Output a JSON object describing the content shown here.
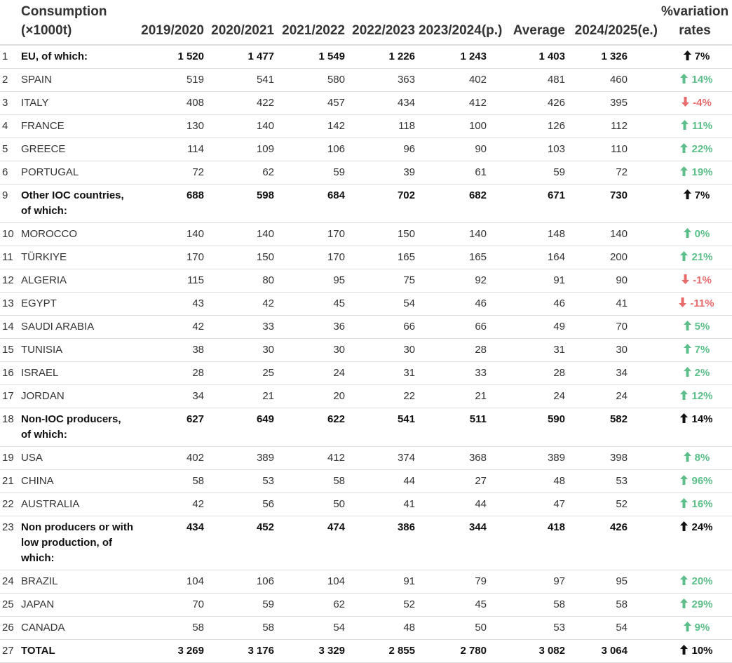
{
  "colors": {
    "up": "#5cbf8a",
    "down": "#e86b6b"
  },
  "headers": [
    "Consumption (×1000t)",
    "2019/2020",
    "2020/2021",
    "2021/2022",
    "2022/2023",
    "2023/2024(p.)",
    "Average",
    "2024/2025(e.)",
    "%variation rates"
  ],
  "rows": [
    {
      "n": "1",
      "name": "EU, of which:",
      "bold": true,
      "v": [
        "1 520",
        "1 477",
        "1 549",
        "1 226",
        "1 243",
        "1 403",
        "1 326"
      ],
      "var": "7%",
      "dir": "up"
    },
    {
      "n": "2",
      "name": "SPAIN",
      "v": [
        "519",
        "541",
        "580",
        "363",
        "402",
        "481",
        "460"
      ],
      "var": "14%",
      "dir": "up"
    },
    {
      "n": "3",
      "name": "ITALY",
      "v": [
        "408",
        "422",
        "457",
        "434",
        "412",
        "426",
        "395"
      ],
      "var": "-4%",
      "dir": "down"
    },
    {
      "n": "4",
      "name": "FRANCE",
      "v": [
        "130",
        "140",
        "142",
        "118",
        "100",
        "126",
        "112"
      ],
      "var": "11%",
      "dir": "up"
    },
    {
      "n": "5",
      "name": "GREECE",
      "v": [
        "114",
        "109",
        "106",
        "96",
        "90",
        "103",
        "110"
      ],
      "var": "22%",
      "dir": "up"
    },
    {
      "n": "6",
      "name": "PORTUGAL",
      "v": [
        "72",
        "62",
        "59",
        "39",
        "61",
        "59",
        "72"
      ],
      "var": "19%",
      "dir": "up"
    },
    {
      "n": "9",
      "name": "Other IOC countries, of which:",
      "bold": true,
      "v": [
        "688",
        "598",
        "684",
        "702",
        "682",
        "671",
        "730"
      ],
      "var": "7%",
      "dir": "up"
    },
    {
      "n": "10",
      "name": "MOROCCO",
      "v": [
        "140",
        "140",
        "170",
        "150",
        "140",
        "148",
        "140"
      ],
      "var": "0%",
      "dir": "up"
    },
    {
      "n": "11",
      "name": "TÜRKIYE",
      "v": [
        "170",
        "150",
        "170",
        "165",
        "165",
        "164",
        "200"
      ],
      "var": "21%",
      "dir": "up"
    },
    {
      "n": "12",
      "name": "ALGERIA",
      "v": [
        "115",
        "80",
        "95",
        "75",
        "92",
        "91",
        "90"
      ],
      "var": "-1%",
      "dir": "down"
    },
    {
      "n": "13",
      "name": "EGYPT",
      "v": [
        "43",
        "42",
        "45",
        "54",
        "46",
        "46",
        "41"
      ],
      "var": "-11%",
      "dir": "down"
    },
    {
      "n": "14",
      "name": "SAUDI ARABIA",
      "v": [
        "42",
        "33",
        "36",
        "66",
        "66",
        "49",
        "70"
      ],
      "var": "5%",
      "dir": "up"
    },
    {
      "n": "15",
      "name": "TUNISIA",
      "v": [
        "38",
        "30",
        "30",
        "30",
        "28",
        "31",
        "30"
      ],
      "var": "7%",
      "dir": "up"
    },
    {
      "n": "16",
      "name": "ISRAEL",
      "v": [
        "28",
        "25",
        "24",
        "31",
        "33",
        "28",
        "34"
      ],
      "var": "2%",
      "dir": "up"
    },
    {
      "n": "17",
      "name": "JORDAN",
      "v": [
        "34",
        "21",
        "20",
        "22",
        "21",
        "24",
        "24"
      ],
      "var": "12%",
      "dir": "up"
    },
    {
      "n": "18",
      "name": "Non-IOC producers, of which:",
      "bold": true,
      "v": [
        "627",
        "649",
        "622",
        "541",
        "511",
        "590",
        "582"
      ],
      "var": "14%",
      "dir": "up"
    },
    {
      "n": "19",
      "name": "USA",
      "v": [
        "402",
        "389",
        "412",
        "374",
        "368",
        "389",
        "398"
      ],
      "var": "8%",
      "dir": "up"
    },
    {
      "n": "21",
      "name": "CHINA",
      "v": [
        "58",
        "53",
        "58",
        "44",
        "27",
        "48",
        "53"
      ],
      "var": "96%",
      "dir": "up"
    },
    {
      "n": "22",
      "name": "AUSTRALIA",
      "v": [
        "42",
        "56",
        "50",
        "41",
        "44",
        "47",
        "52"
      ],
      "var": "16%",
      "dir": "up"
    },
    {
      "n": "23",
      "name": "Non producers or with low production, of which:",
      "bold": true,
      "v": [
        "434",
        "452",
        "474",
        "386",
        "344",
        "418",
        "426"
      ],
      "var": "24%",
      "dir": "up"
    },
    {
      "n": "24",
      "name": "BRAZIL",
      "v": [
        "104",
        "106",
        "104",
        "91",
        "79",
        "97",
        "95"
      ],
      "var": "20%",
      "dir": "up"
    },
    {
      "n": "25",
      "name": "JAPAN",
      "v": [
        "70",
        "59",
        "62",
        "52",
        "45",
        "58",
        "58"
      ],
      "var": "29%",
      "dir": "up"
    },
    {
      "n": "26",
      "name": "CANADA",
      "v": [
        "58",
        "58",
        "54",
        "48",
        "50",
        "53",
        "54"
      ],
      "var": "9%",
      "dir": "up"
    },
    {
      "n": "27",
      "name": "TOTAL",
      "bold": true,
      "v": [
        "3 269",
        "3 176",
        "3 329",
        "2 855",
        "2 780",
        "3 082",
        "3 064"
      ],
      "var": "10%",
      "dir": "up"
    }
  ]
}
